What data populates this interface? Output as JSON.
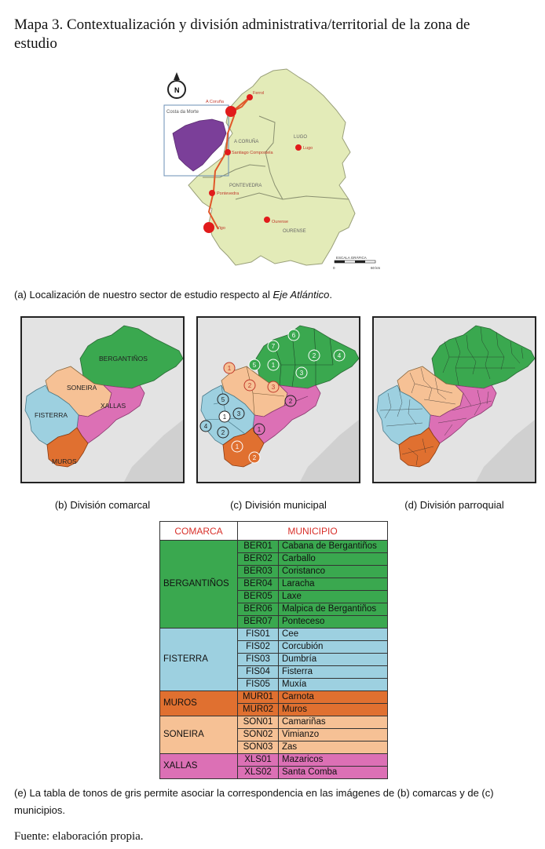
{
  "title": "Mapa 3. Contextualización y división administrativa/territorial de la zona de estudio",
  "main_map": {
    "north_label": "N",
    "inset_label": "Costa da Morte",
    "provinces": [
      "A CORUÑA",
      "LUGO",
      "PONTEVEDRA",
      "OURENSE"
    ],
    "cities": [
      "A Coruña",
      "Ferrol",
      "Santiago Compostela",
      "Lugo",
      "Pontevedra",
      "Vigo",
      "Ourense"
    ],
    "scale_title": "ESCALA GRÁFICA",
    "scale_min": "0",
    "scale_max": "60 km",
    "colors": {
      "land": "#e3ebb8",
      "study_area": "#7b3f99",
      "axis": "#e0582a",
      "city": "#e11b1b"
    }
  },
  "caption_a": {
    "text": "(a) Localización de nuestro sector de estudio respecto al ",
    "italic": "Eje Atlántico",
    "end": "."
  },
  "panel_b": {
    "caption": "(b) División comarcal",
    "labels": [
      "BERGANTIÑOS",
      "SONEIRA",
      "XALLAS",
      "FISTERRA",
      "MUROS"
    ]
  },
  "panel_c": {
    "caption": "(c) División municipal",
    "numbers": [
      "7",
      "6",
      "5",
      "1",
      "2",
      "4",
      "3",
      "1",
      "2",
      "3",
      "5",
      "1",
      "3",
      "2",
      "4",
      "2",
      "1",
      "1",
      "2"
    ]
  },
  "panel_d": {
    "caption": "(d) División parroquial"
  },
  "table": {
    "headers": [
      "COMARCA",
      "MUNICIPIO"
    ],
    "groups": [
      {
        "comarca": "BERGANTIÑOS",
        "color": "#3aa84f",
        "rows": [
          {
            "code": "BER01",
            "name": "Cabana de Bergantiños"
          },
          {
            "code": "BER02",
            "name": "Carballo"
          },
          {
            "code": "BER03",
            "name": "Coristanco"
          },
          {
            "code": "BER04",
            "name": "Laracha"
          },
          {
            "code": "BER05",
            "name": "Laxe"
          },
          {
            "code": "BER06",
            "name": "Malpica de Bergantiños"
          },
          {
            "code": "BER07",
            "name": "Ponteceso"
          }
        ]
      },
      {
        "comarca": "FISTERRA",
        "color": "#9dd0e0",
        "rows": [
          {
            "code": "FIS01",
            "name": "Cee"
          },
          {
            "code": "FIS02",
            "name": "Corcubión"
          },
          {
            "code": "FIS03",
            "name": "Dumbría"
          },
          {
            "code": "FIS04",
            "name": "Fisterra"
          },
          {
            "code": "FIS05",
            "name": "Muxía"
          }
        ]
      },
      {
        "comarca": "MUROS",
        "color": "#e07030",
        "rows": [
          {
            "code": "MUR01",
            "name": "Carnota"
          },
          {
            "code": "MUR02",
            "name": "Muros"
          }
        ]
      },
      {
        "comarca": "SONEIRA",
        "color": "#f6c195",
        "rows": [
          {
            "code": "SON01",
            "name": "Camariñas"
          },
          {
            "code": "SON02",
            "name": "Vimianzo"
          },
          {
            "code": "SON03",
            "name": "Zas"
          }
        ]
      },
      {
        "comarca": "XALLAS",
        "color": "#dc70b5",
        "rows": [
          {
            "code": "XLS01",
            "name": "Mazaricos"
          },
          {
            "code": "XLS02",
            "name": "Santa Comba"
          }
        ]
      }
    ]
  },
  "caption_e": "(e) La tabla de tonos de gris permite asociar la correspondencia en las imágenes de (b) comarcas y de (c) municipios.",
  "source": "Fuente: elaboración propia."
}
